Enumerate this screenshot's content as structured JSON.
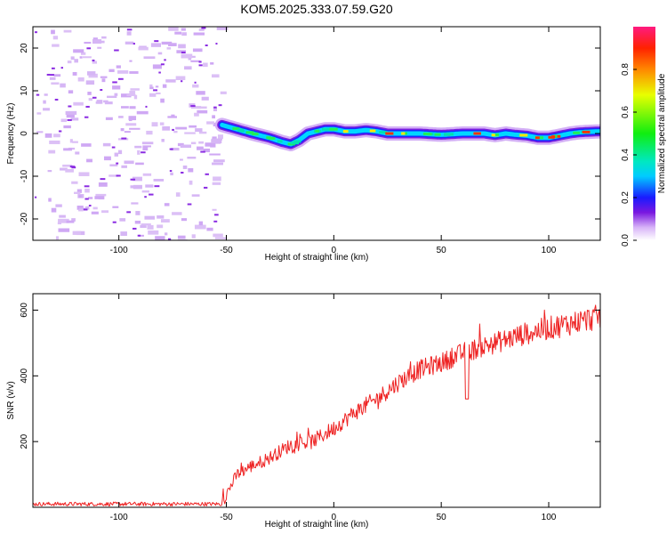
{
  "title": "KOM5.2025.333.07.59.G20",
  "chart_data": [
    {
      "type": "heatmap",
      "name": "spectrogram",
      "xlabel": "Height of straight line (km)",
      "ylabel": "Frequency (Hz)",
      "xlim": [
        -140,
        124
      ],
      "ylim": [
        -25,
        25
      ],
      "xticks": [
        -100,
        -50,
        0,
        50,
        100
      ],
      "yticks": [
        -20,
        -10,
        0,
        10,
        20
      ],
      "ridge_line": {
        "x": [
          -52,
          -45,
          -38,
          -30,
          -24,
          -20,
          -16,
          -12,
          -8,
          -4,
          0,
          5,
          10,
          15,
          20,
          25,
          30,
          40,
          50,
          60,
          70,
          75,
          80,
          85,
          90,
          95,
          100,
          105,
          110,
          115,
          124
        ],
        "y": [
          2,
          1,
          0,
          -1,
          -2,
          -2.5,
          -1.5,
          0,
          0.5,
          1,
          1,
          0.5,
          0.5,
          0.8,
          0.5,
          0,
          0,
          0,
          -0.3,
          0,
          0,
          -0.4,
          0,
          -0.3,
          -0.5,
          -1,
          -1,
          -0.5,
          0,
          0.3,
          0.5
        ]
      },
      "colorbar": {
        "label": "Normalized spectral amplitude",
        "range": [
          0,
          1
        ],
        "ticks": [
          "0.0",
          "0.2",
          "0.4",
          "0.6",
          "0.8"
        ],
        "tick_values": [
          0,
          0.2,
          0.4,
          0.6,
          0.8
        ]
      }
    },
    {
      "type": "line",
      "name": "snr",
      "xlabel": "Height of straight line (km)",
      "ylabel": "SNR (v/v)",
      "xlim": [
        -140,
        124
      ],
      "ylim": [
        0,
        650
      ],
      "xticks": [
        -100,
        -50,
        0,
        50,
        100
      ],
      "yticks": [
        200,
        400,
        600
      ],
      "color": "#ee2222",
      "trend": {
        "x": [
          -140,
          -52,
          -50,
          -45,
          -40,
          -30,
          -20,
          -10,
          0,
          10,
          20,
          30,
          40,
          50,
          60,
          70,
          80,
          90,
          100,
          110,
          124
        ],
        "y": [
          10,
          10,
          40,
          100,
          120,
          150,
          190,
          200,
          240,
          290,
          330,
          380,
          420,
          440,
          470,
          490,
          510,
          530,
          545,
          560,
          580
        ]
      },
      "dip": {
        "x": 62,
        "y": 330
      }
    }
  ]
}
